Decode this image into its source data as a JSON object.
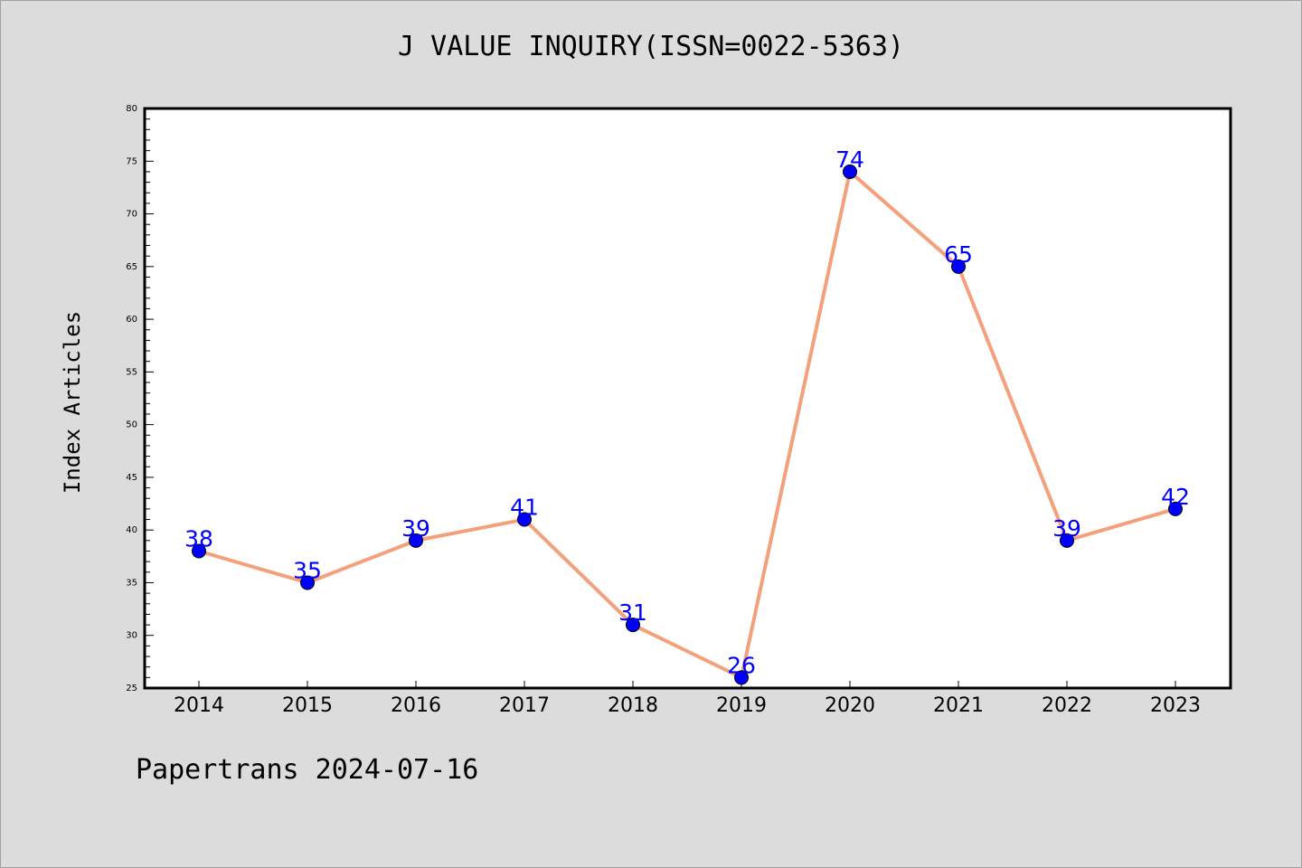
{
  "chart_data": {
    "type": "line",
    "title": "J VALUE INQUIRY(ISSN=0022-5363)",
    "ylabel": "Index Articles",
    "xlabel": "",
    "categories": [
      "2014",
      "2015",
      "2016",
      "2017",
      "2018",
      "2019",
      "2020",
      "2021",
      "2022",
      "2023"
    ],
    "values": [
      38,
      35,
      39,
      41,
      31,
      26,
      74,
      65,
      39,
      42
    ],
    "ylim": [
      25,
      80
    ],
    "yticks": [
      25,
      30,
      35,
      40,
      45,
      50,
      55,
      60,
      65,
      70,
      75,
      80
    ],
    "line_color": "#f4a07a",
    "marker_color": "#0000ff",
    "label_color": "#0000ff",
    "grid": false,
    "legend": "none"
  },
  "footer": "Papertrans 2024-07-16"
}
